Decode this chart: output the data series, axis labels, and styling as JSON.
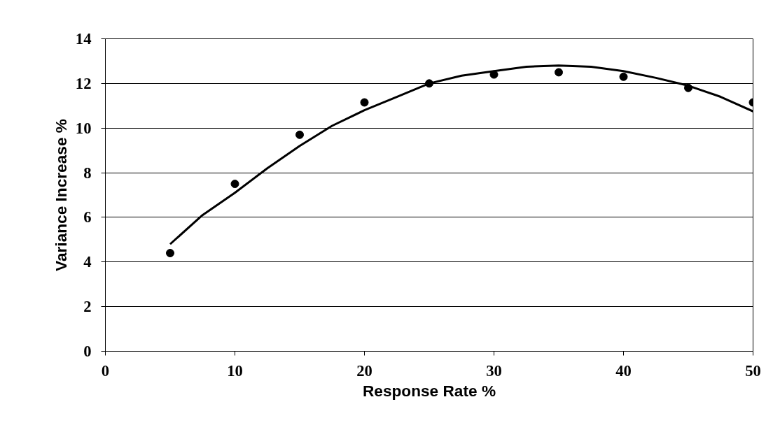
{
  "chart_data": {
    "type": "scatter",
    "xlabel": "Response Rate %",
    "ylabel": "Variance Increase %",
    "xlim": [
      0,
      50
    ],
    "xticks": [
      0,
      10,
      20,
      30,
      40,
      50
    ],
    "ylim": [
      0,
      14
    ],
    "yticks": [
      0,
      2,
      4,
      6,
      8,
      10,
      12,
      14
    ],
    "grid": "y",
    "series": [
      {
        "marker": "circle",
        "color": "#000000",
        "x": [
          5,
          10,
          15,
          20,
          25,
          30,
          35,
          40,
          45,
          50
        ],
        "values": [
          4.4,
          7.5,
          9.7,
          11.15,
          12.0,
          12.4,
          12.5,
          12.3,
          11.8,
          11.15
        ]
      },
      {
        "type": "line",
        "marker": "none",
        "color": "#000000",
        "x": [
          5,
          7.5,
          10,
          12.5,
          15,
          17.5,
          20,
          22.5,
          25,
          27.5,
          30,
          32.5,
          35,
          37.5,
          40,
          42.5,
          45,
          47.5,
          50
        ],
        "values": [
          4.8,
          6.1,
          7.1,
          8.2,
          9.2,
          10.1,
          10.8,
          11.4,
          12.0,
          12.35,
          12.55,
          12.75,
          12.8,
          12.75,
          12.55,
          12.25,
          11.9,
          11.4,
          10.75
        ]
      }
    ]
  }
}
